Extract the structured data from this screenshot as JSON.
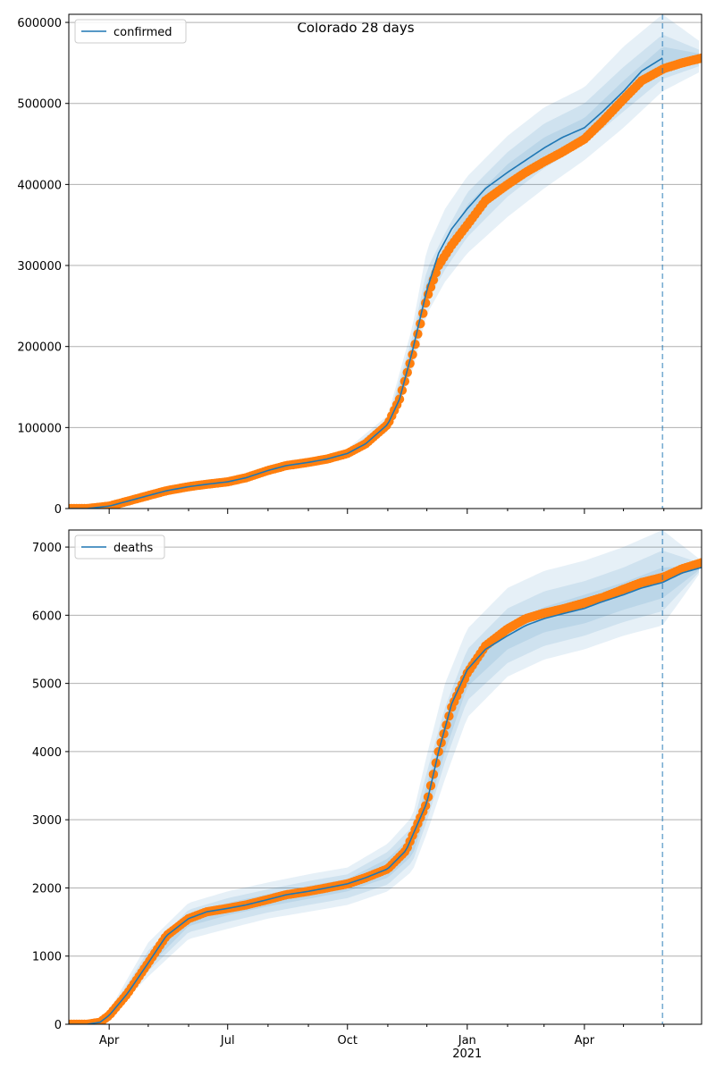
{
  "title": "Colorado 28 days",
  "x_axis": {
    "tick_labels": [
      "Apr",
      "Jul",
      "Oct",
      "Jan",
      "Apr"
    ],
    "year_label": "2021"
  },
  "colors": {
    "model_line": "#1f77b4",
    "observed": "#ff7f0e",
    "band": "#1f77b4",
    "grid": "#b0b0b0",
    "forecast_marker": "#1f77b4"
  },
  "chart_data": [
    {
      "type": "line",
      "name": "confirmed",
      "legend": "confirmed",
      "x_range": [
        "2020-03-01",
        "2021-06-30"
      ],
      "ylim": [
        0,
        610000
      ],
      "y_ticks": [
        0,
        100000,
        200000,
        300000,
        400000,
        500000,
        600000
      ],
      "y_tick_labels": [
        "0",
        "100000",
        "200000",
        "300000",
        "400000",
        "500000",
        "600000"
      ],
      "forecast_start": "2021-05-31",
      "grid": "horizontal",
      "legend_position": "top-left",
      "observed": {
        "x": [
          "2020-03-01",
          "2020-03-15",
          "2020-04-01",
          "2020-04-15",
          "2020-05-01",
          "2020-05-15",
          "2020-06-01",
          "2020-06-15",
          "2020-07-01",
          "2020-07-15",
          "2020-08-01",
          "2020-08-15",
          "2020-09-01",
          "2020-09-15",
          "2020-10-01",
          "2020-10-15",
          "2020-11-01",
          "2020-11-10",
          "2020-11-20",
          "2020-12-01",
          "2020-12-10",
          "2020-12-20",
          "2021-01-01",
          "2021-01-15",
          "2021-02-01",
          "2021-02-15",
          "2021-03-01",
          "2021-03-15",
          "2021-04-01",
          "2021-04-15",
          "2021-05-01",
          "2021-05-15",
          "2021-06-01",
          "2021-06-15",
          "2021-06-30"
        ],
        "y": [
          0,
          0,
          3000,
          9000,
          16000,
          22000,
          27000,
          30000,
          33000,
          38000,
          47000,
          53000,
          57000,
          61000,
          68000,
          80000,
          104000,
          135000,
          190000,
          260000,
          300000,
          325000,
          350000,
          380000,
          400000,
          415000,
          428000,
          440000,
          456000,
          478000,
          505000,
          528000,
          543000,
          550000,
          556000
        ]
      },
      "model": {
        "x": [
          "2020-03-01",
          "2020-03-15",
          "2020-04-01",
          "2020-04-15",
          "2020-05-01",
          "2020-05-15",
          "2020-06-01",
          "2020-06-15",
          "2020-07-01",
          "2020-07-15",
          "2020-08-01",
          "2020-08-15",
          "2020-09-01",
          "2020-09-15",
          "2020-10-01",
          "2020-10-15",
          "2020-11-01",
          "2020-11-10",
          "2020-11-20",
          "2020-12-01",
          "2020-12-10",
          "2020-12-20",
          "2021-01-01",
          "2021-01-15",
          "2021-02-01",
          "2021-02-15",
          "2021-03-01",
          "2021-03-15",
          "2021-04-01",
          "2021-04-15",
          "2021-05-01",
          "2021-05-15",
          "2021-05-31"
        ],
        "y": [
          0,
          0,
          3000,
          9000,
          16000,
          22000,
          27000,
          30000,
          33000,
          38000,
          47000,
          53000,
          57000,
          61000,
          68000,
          80000,
          104000,
          135000,
          195000,
          270000,
          315000,
          345000,
          370000,
          395000,
          415000,
          430000,
          445000,
          458000,
          470000,
          490000,
          515000,
          540000,
          556000
        ]
      },
      "bands": [
        {
          "x": [
            "2020-10-01",
            "2020-11-01",
            "2020-11-20",
            "2020-12-01",
            "2020-12-15",
            "2021-01-01",
            "2021-02-01",
            "2021-03-01",
            "2021-04-01",
            "2021-05-01",
            "2021-05-31",
            "2021-06-30"
          ],
          "lower": [
            62000,
            95000,
            170000,
            240000,
            280000,
            315000,
            360000,
            395000,
            430000,
            470000,
            515000,
            540000
          ],
          "upper": [
            74000,
            115000,
            225000,
            320000,
            370000,
            410000,
            460000,
            495000,
            520000,
            570000,
            610000,
            575000
          ]
        },
        {
          "x": [
            "2020-10-01",
            "2020-11-01",
            "2020-11-20",
            "2020-12-01",
            "2020-12-15",
            "2021-01-01",
            "2021-02-01",
            "2021-03-01",
            "2021-04-01",
            "2021-05-01",
            "2021-05-31",
            "2021-06-30"
          ],
          "lower": [
            65000,
            99000,
            180000,
            255000,
            295000,
            335000,
            385000,
            420000,
            450000,
            490000,
            530000,
            547000
          ],
          "upper": [
            71000,
            110000,
            212000,
            295000,
            340000,
            390000,
            440000,
            475000,
            500000,
            545000,
            585000,
            565000
          ]
        },
        {
          "x": [
            "2020-10-01",
            "2020-11-01",
            "2020-11-20",
            "2020-12-01",
            "2020-12-15",
            "2021-01-01",
            "2021-02-01",
            "2021-03-01",
            "2021-04-01",
            "2021-05-01",
            "2021-05-31",
            "2021-06-30"
          ],
          "lower": [
            66500,
            101000,
            188000,
            263000,
            305000,
            350000,
            398000,
            435000,
            460000,
            503000,
            542000,
            551000
          ],
          "upper": [
            69500,
            107000,
            203000,
            282000,
            325000,
            375000,
            425000,
            458000,
            482000,
            528000,
            570000,
            561000
          ]
        }
      ]
    },
    {
      "type": "line",
      "name": "deaths",
      "legend": "deaths",
      "x_range": [
        "2020-03-01",
        "2021-06-30"
      ],
      "ylim": [
        0,
        7250
      ],
      "y_ticks": [
        0,
        1000,
        2000,
        3000,
        4000,
        5000,
        6000,
        7000
      ],
      "y_tick_labels": [
        "0",
        "1000",
        "2000",
        "3000",
        "4000",
        "5000",
        "6000",
        "7000"
      ],
      "forecast_start": "2021-05-31",
      "grid": "horizontal",
      "legend_position": "top-left",
      "observed": {
        "x": [
          "2020-03-01",
          "2020-03-15",
          "2020-03-25",
          "2020-04-01",
          "2020-04-15",
          "2020-05-01",
          "2020-05-15",
          "2020-06-01",
          "2020-06-15",
          "2020-07-01",
          "2020-07-15",
          "2020-08-01",
          "2020-08-15",
          "2020-09-01",
          "2020-09-15",
          "2020-10-01",
          "2020-10-15",
          "2020-11-01",
          "2020-11-15",
          "2020-12-01",
          "2020-12-10",
          "2020-12-20",
          "2021-01-01",
          "2021-01-15",
          "2021-02-01",
          "2021-02-15",
          "2021-03-01",
          "2021-03-15",
          "2021-04-01",
          "2021-04-15",
          "2021-05-01",
          "2021-05-15",
          "2021-06-01",
          "2021-06-15",
          "2021-06-30"
        ],
        "y": [
          0,
          0,
          30,
          130,
          450,
          900,
          1300,
          1550,
          1650,
          1700,
          1750,
          1830,
          1900,
          1950,
          2000,
          2060,
          2150,
          2280,
          2550,
          3250,
          4000,
          4650,
          5150,
          5550,
          5800,
          5950,
          6030,
          6090,
          6180,
          6260,
          6380,
          6480,
          6560,
          6680,
          6770
        ]
      },
      "model": {
        "x": [
          "2020-03-01",
          "2020-03-15",
          "2020-03-25",
          "2020-04-01",
          "2020-04-15",
          "2020-05-01",
          "2020-05-15",
          "2020-06-01",
          "2020-06-15",
          "2020-07-01",
          "2020-07-15",
          "2020-08-01",
          "2020-08-15",
          "2020-09-01",
          "2020-09-15",
          "2020-10-01",
          "2020-10-15",
          "2020-11-01",
          "2020-11-15",
          "2020-12-01",
          "2020-12-10",
          "2020-12-20",
          "2021-01-01",
          "2021-01-15",
          "2021-02-01",
          "2021-02-15",
          "2021-03-01",
          "2021-03-15",
          "2021-04-01",
          "2021-04-15",
          "2021-05-01",
          "2021-05-15",
          "2021-05-31",
          "2021-06-15",
          "2021-06-30"
        ],
        "y": [
          0,
          0,
          30,
          130,
          450,
          900,
          1300,
          1550,
          1650,
          1700,
          1750,
          1830,
          1900,
          1950,
          2000,
          2060,
          2150,
          2280,
          2550,
          3250,
          4000,
          4700,
          5200,
          5500,
          5700,
          5850,
          5950,
          6020,
          6100,
          6200,
          6300,
          6400,
          6480,
          6620,
          6700
        ]
      },
      "bands": [
        {
          "x": [
            "2020-04-01",
            "2020-05-01",
            "2020-06-01",
            "2020-07-01",
            "2020-08-01",
            "2020-09-01",
            "2020-10-01",
            "2020-11-01",
            "2020-11-20",
            "2020-12-01",
            "2020-12-15",
            "2021-01-01",
            "2021-02-01",
            "2021-03-01",
            "2021-04-01",
            "2021-05-01",
            "2021-05-31",
            "2021-06-30"
          ],
          "lower": [
            100,
            700,
            1250,
            1400,
            1550,
            1650,
            1750,
            1950,
            2250,
            2800,
            3600,
            4500,
            5100,
            5350,
            5500,
            5700,
            5850,
            6650
          ],
          "upper": [
            200,
            1200,
            1780,
            1950,
            2080,
            2200,
            2300,
            2650,
            3050,
            3950,
            5000,
            5800,
            6400,
            6650,
            6800,
            7000,
            7250,
            6800
          ]
        },
        {
          "x": [
            "2020-04-01",
            "2020-05-01",
            "2020-06-01",
            "2020-07-01",
            "2020-08-01",
            "2020-09-01",
            "2020-10-01",
            "2020-11-01",
            "2020-11-20",
            "2020-12-01",
            "2020-12-15",
            "2021-01-01",
            "2021-02-01",
            "2021-03-01",
            "2021-04-01",
            "2021-05-01",
            "2021-05-31",
            "2021-06-30"
          ],
          "lower": [
            115,
            780,
            1350,
            1500,
            1640,
            1750,
            1850,
            2050,
            2380,
            2980,
            3850,
            4750,
            5300,
            5550,
            5700,
            5900,
            6060,
            6670
          ],
          "upper": [
            170,
            1080,
            1680,
            1850,
            1980,
            2100,
            2200,
            2530,
            2900,
            3700,
            4650,
            5500,
            6100,
            6350,
            6500,
            6700,
            6950,
            6760
          ]
        },
        {
          "x": [
            "2020-04-01",
            "2020-05-01",
            "2020-06-01",
            "2020-07-01",
            "2020-08-01",
            "2020-09-01",
            "2020-10-01",
            "2020-11-01",
            "2020-11-20",
            "2020-12-01",
            "2020-12-15",
            "2021-01-01",
            "2021-02-01",
            "2021-03-01",
            "2021-04-01",
            "2021-05-01",
            "2021-05-31",
            "2021-06-30"
          ],
          "lower": [
            125,
            840,
            1440,
            1600,
            1730,
            1840,
            1950,
            2150,
            2480,
            3100,
            4000,
            4950,
            5500,
            5750,
            5880,
            6080,
            6250,
            6690
          ],
          "upper": [
            150,
            990,
            1620,
            1780,
            1910,
            2030,
            2130,
            2430,
            2770,
            3520,
            4400,
            5300,
            5880,
            6120,
            6300,
            6480,
            6700,
            6730
          ]
        }
      ]
    }
  ]
}
